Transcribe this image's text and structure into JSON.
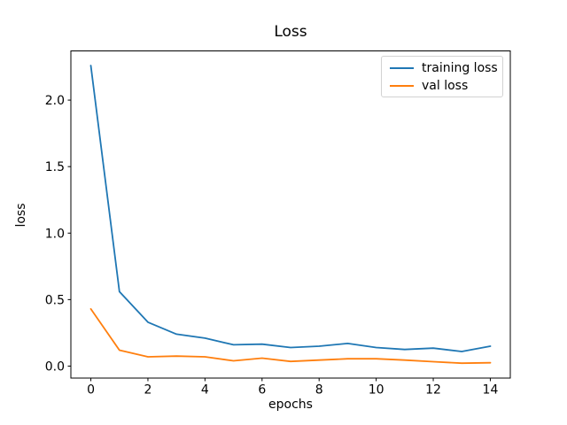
{
  "chart_data": {
    "type": "line",
    "title": "Loss",
    "xlabel": "epochs",
    "ylabel": "loss",
    "x": [
      0,
      1,
      2,
      3,
      4,
      5,
      6,
      7,
      8,
      9,
      10,
      11,
      12,
      13,
      14
    ],
    "series": [
      {
        "name": "training loss",
        "color": "#1f77b4",
        "values": [
          2.26,
          0.56,
          0.33,
          0.24,
          0.21,
          0.16,
          0.165,
          0.14,
          0.15,
          0.17,
          0.14,
          0.125,
          0.135,
          0.11,
          0.15
        ]
      },
      {
        "name": "val loss",
        "color": "#ff7f0e",
        "values": [
          0.43,
          0.12,
          0.07,
          0.075,
          0.07,
          0.04,
          0.06,
          0.035,
          0.045,
          0.055,
          0.055,
          0.045,
          0.033,
          0.022,
          0.025
        ]
      }
    ],
    "xlim": [
      -0.7,
      14.7
    ],
    "ylim": [
      -0.09,
      2.37
    ],
    "xticks": {
      "values": [
        0,
        2,
        4,
        6,
        8,
        10,
        12,
        14
      ],
      "labels": [
        "0",
        "2",
        "4",
        "6",
        "8",
        "10",
        "12",
        "14"
      ]
    },
    "yticks": {
      "values": [
        0,
        0.5,
        1,
        1.5,
        2
      ],
      "labels": [
        "0.0",
        "0.5",
        "1.0",
        "1.5",
        "2.0"
      ]
    },
    "grid": false,
    "legend": {
      "position": "upper right",
      "entries": [
        "training loss",
        "val loss"
      ]
    }
  },
  "colors": {
    "background": "#ffffff",
    "spine": "#000000",
    "tick_text": "#000000",
    "legend_border": "#d2d2d2"
  }
}
